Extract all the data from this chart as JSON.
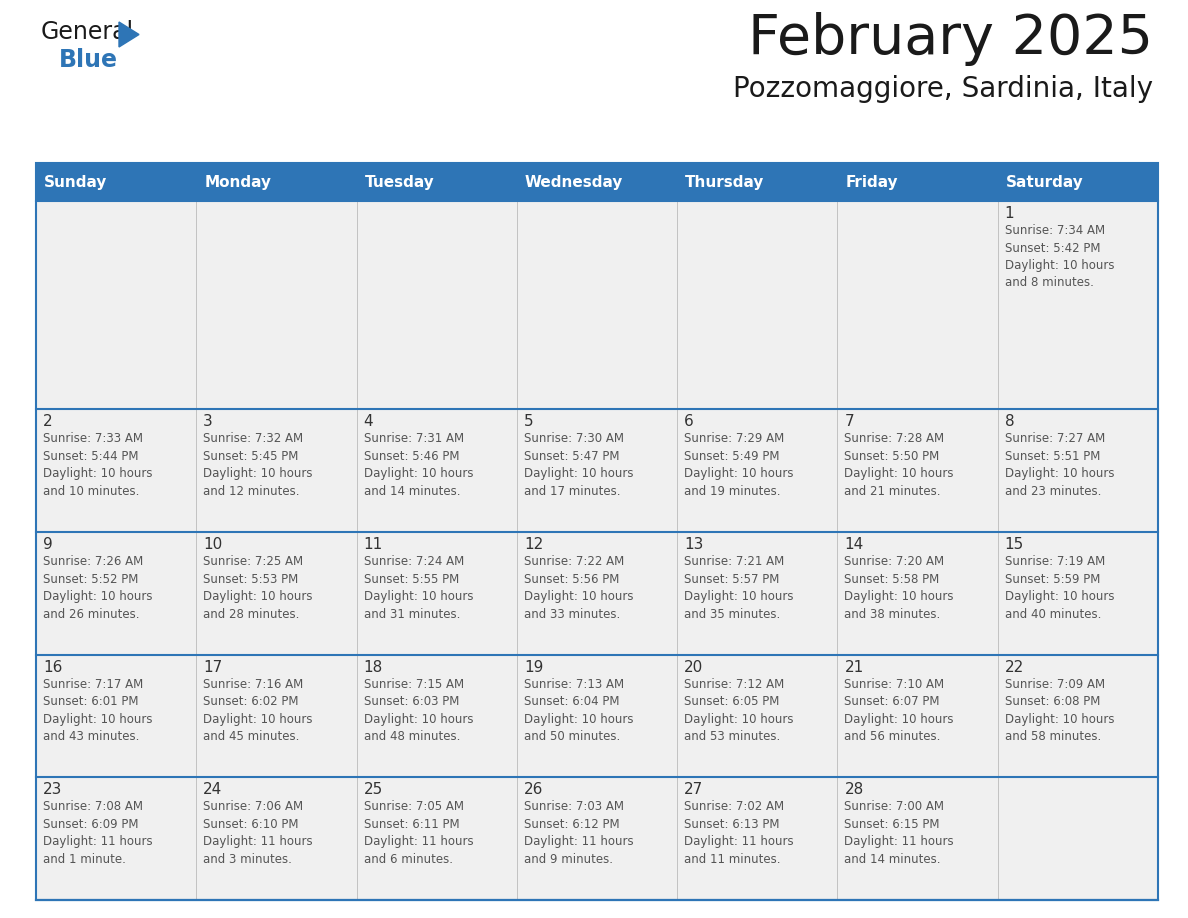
{
  "title": "February 2025",
  "subtitle": "Pozzomaggiore, Sardinia, Italy",
  "days_of_week": [
    "Sunday",
    "Monday",
    "Tuesday",
    "Wednesday",
    "Thursday",
    "Friday",
    "Saturday"
  ],
  "header_bg": "#2E75B6",
  "header_text": "#FFFFFF",
  "cell_bg": "#F0F0F0",
  "cell_bg_white": "#FFFFFF",
  "line_color": "#2E75B6",
  "text_color": "#555555",
  "day_number_color": "#333333",
  "title_color": "#1A1A1A",
  "logo_general_color": "#1A1A1A",
  "logo_blue_color": "#2E75B6",
  "logo_triangle_color": "#2E75B6",
  "calendar_data": [
    [
      {
        "day": null,
        "info": null
      },
      {
        "day": null,
        "info": null
      },
      {
        "day": null,
        "info": null
      },
      {
        "day": null,
        "info": null
      },
      {
        "day": null,
        "info": null
      },
      {
        "day": null,
        "info": null
      },
      {
        "day": 1,
        "info": "Sunrise: 7:34 AM\nSunset: 5:42 PM\nDaylight: 10 hours\nand 8 minutes."
      }
    ],
    [
      {
        "day": 2,
        "info": "Sunrise: 7:33 AM\nSunset: 5:44 PM\nDaylight: 10 hours\nand 10 minutes."
      },
      {
        "day": 3,
        "info": "Sunrise: 7:32 AM\nSunset: 5:45 PM\nDaylight: 10 hours\nand 12 minutes."
      },
      {
        "day": 4,
        "info": "Sunrise: 7:31 AM\nSunset: 5:46 PM\nDaylight: 10 hours\nand 14 minutes."
      },
      {
        "day": 5,
        "info": "Sunrise: 7:30 AM\nSunset: 5:47 PM\nDaylight: 10 hours\nand 17 minutes."
      },
      {
        "day": 6,
        "info": "Sunrise: 7:29 AM\nSunset: 5:49 PM\nDaylight: 10 hours\nand 19 minutes."
      },
      {
        "day": 7,
        "info": "Sunrise: 7:28 AM\nSunset: 5:50 PM\nDaylight: 10 hours\nand 21 minutes."
      },
      {
        "day": 8,
        "info": "Sunrise: 7:27 AM\nSunset: 5:51 PM\nDaylight: 10 hours\nand 23 minutes."
      }
    ],
    [
      {
        "day": 9,
        "info": "Sunrise: 7:26 AM\nSunset: 5:52 PM\nDaylight: 10 hours\nand 26 minutes."
      },
      {
        "day": 10,
        "info": "Sunrise: 7:25 AM\nSunset: 5:53 PM\nDaylight: 10 hours\nand 28 minutes."
      },
      {
        "day": 11,
        "info": "Sunrise: 7:24 AM\nSunset: 5:55 PM\nDaylight: 10 hours\nand 31 minutes."
      },
      {
        "day": 12,
        "info": "Sunrise: 7:22 AM\nSunset: 5:56 PM\nDaylight: 10 hours\nand 33 minutes."
      },
      {
        "day": 13,
        "info": "Sunrise: 7:21 AM\nSunset: 5:57 PM\nDaylight: 10 hours\nand 35 minutes."
      },
      {
        "day": 14,
        "info": "Sunrise: 7:20 AM\nSunset: 5:58 PM\nDaylight: 10 hours\nand 38 minutes."
      },
      {
        "day": 15,
        "info": "Sunrise: 7:19 AM\nSunset: 5:59 PM\nDaylight: 10 hours\nand 40 minutes."
      }
    ],
    [
      {
        "day": 16,
        "info": "Sunrise: 7:17 AM\nSunset: 6:01 PM\nDaylight: 10 hours\nand 43 minutes."
      },
      {
        "day": 17,
        "info": "Sunrise: 7:16 AM\nSunset: 6:02 PM\nDaylight: 10 hours\nand 45 minutes."
      },
      {
        "day": 18,
        "info": "Sunrise: 7:15 AM\nSunset: 6:03 PM\nDaylight: 10 hours\nand 48 minutes."
      },
      {
        "day": 19,
        "info": "Sunrise: 7:13 AM\nSunset: 6:04 PM\nDaylight: 10 hours\nand 50 minutes."
      },
      {
        "day": 20,
        "info": "Sunrise: 7:12 AM\nSunset: 6:05 PM\nDaylight: 10 hours\nand 53 minutes."
      },
      {
        "day": 21,
        "info": "Sunrise: 7:10 AM\nSunset: 6:07 PM\nDaylight: 10 hours\nand 56 minutes."
      },
      {
        "day": 22,
        "info": "Sunrise: 7:09 AM\nSunset: 6:08 PM\nDaylight: 10 hours\nand 58 minutes."
      }
    ],
    [
      {
        "day": 23,
        "info": "Sunrise: 7:08 AM\nSunset: 6:09 PM\nDaylight: 11 hours\nand 1 minute."
      },
      {
        "day": 24,
        "info": "Sunrise: 7:06 AM\nSunset: 6:10 PM\nDaylight: 11 hours\nand 3 minutes."
      },
      {
        "day": 25,
        "info": "Sunrise: 7:05 AM\nSunset: 6:11 PM\nDaylight: 11 hours\nand 6 minutes."
      },
      {
        "day": 26,
        "info": "Sunrise: 7:03 AM\nSunset: 6:12 PM\nDaylight: 11 hours\nand 9 minutes."
      },
      {
        "day": 27,
        "info": "Sunrise: 7:02 AM\nSunset: 6:13 PM\nDaylight: 11 hours\nand 11 minutes."
      },
      {
        "day": 28,
        "info": "Sunrise: 7:00 AM\nSunset: 6:15 PM\nDaylight: 11 hours\nand 14 minutes."
      },
      {
        "day": null,
        "info": null
      }
    ]
  ],
  "row_heights": [
    1.7,
    1.0,
    1.0,
    1.0,
    1.0
  ]
}
